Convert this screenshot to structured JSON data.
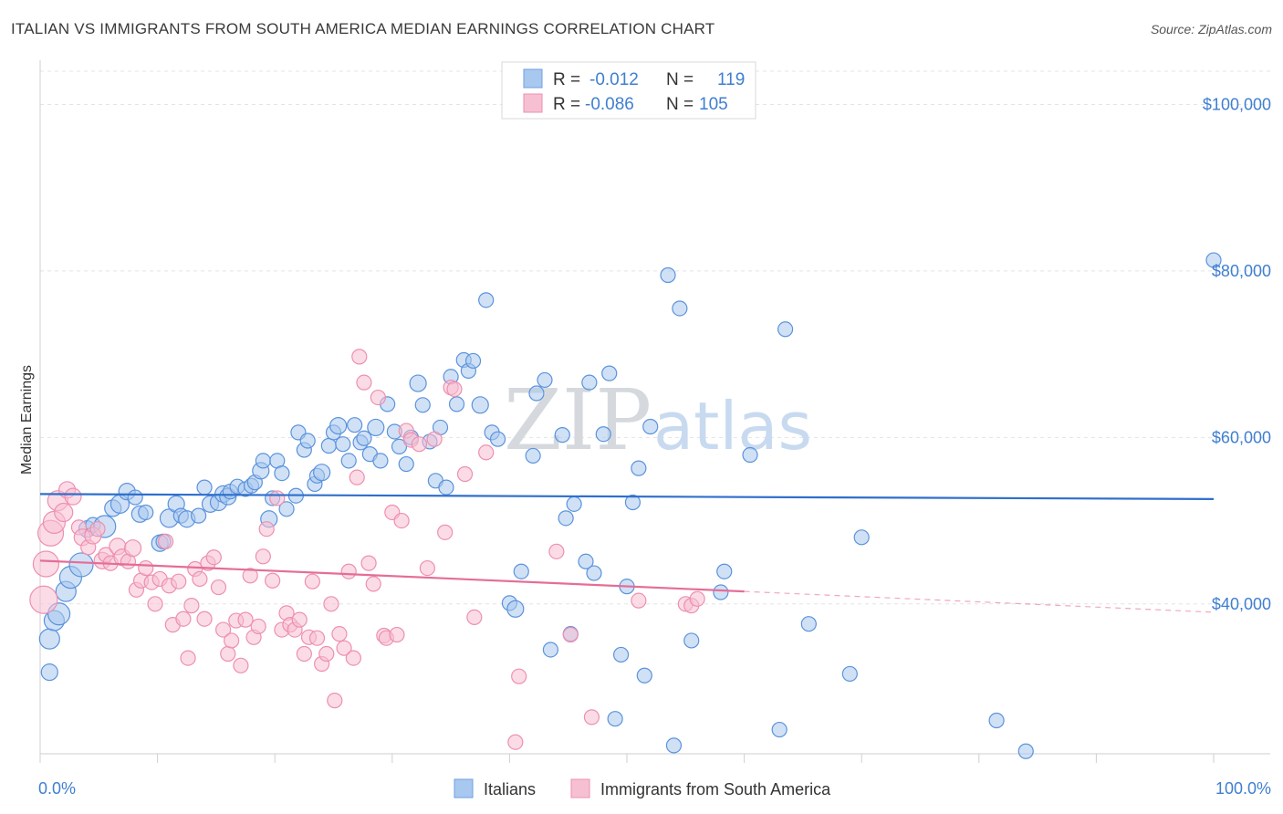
{
  "title": "ITALIAN VS IMMIGRANTS FROM SOUTH AMERICA MEDIAN EARNINGS CORRELATION CHART",
  "source": "Source: ZipAtlas.com",
  "watermark": {
    "part1": "ZIP",
    "part2": "atlas"
  },
  "legend": {
    "rows": [
      {
        "r_label": "R =",
        "r_value": "-0.012",
        "n_label": "N =",
        "n_value": "119",
        "color": "#a9c8ef",
        "stroke": "#6d9fe0"
      },
      {
        "r_label": "R =",
        "r_value": "-0.086",
        "n_label": "N =",
        "n_value": "105",
        "color": "#f7c0d2",
        "stroke": "#ee8fb0"
      }
    ]
  },
  "chart_data": {
    "type": "scatter",
    "ylabel": "Median Earnings",
    "xlim": [
      0,
      100
    ],
    "ylim": [
      22000,
      104000
    ],
    "y_ticks": [
      {
        "value": 40000,
        "label": "$40,000"
      },
      {
        "value": 60000,
        "label": "$60,000"
      },
      {
        "value": 80000,
        "label": "$80,000"
      },
      {
        "value": 100000,
        "label": "$100,000"
      }
    ],
    "x_tick_labels": [
      {
        "value": 0,
        "label": "0.0%"
      },
      {
        "value": 100,
        "label": "100.0%"
      }
    ],
    "series": [
      {
        "name": "Italians",
        "fill": "#a9c8ef",
        "stroke": "#5b93dc",
        "trend": {
          "x0": 0,
          "y0": 53200,
          "x1": 100,
          "y1": 52600,
          "color": "#2f6fcc"
        },
        "points": [
          [
            0.8,
            35800,
            11
          ],
          [
            0.8,
            31800,
            9
          ],
          [
            1.2,
            38000,
            11
          ],
          [
            1.6,
            38800,
            12
          ],
          [
            2.2,
            41500,
            11
          ],
          [
            2.6,
            43200,
            12
          ],
          [
            3.5,
            44700,
            13
          ],
          [
            4.0,
            49000,
            9
          ],
          [
            4.5,
            49500,
            8
          ],
          [
            5.5,
            49300,
            12
          ],
          [
            6.2,
            51500,
            9
          ],
          [
            6.8,
            52000,
            10
          ],
          [
            7.4,
            53500,
            9
          ],
          [
            8.1,
            52800,
            8
          ],
          [
            8.5,
            50800,
            9
          ],
          [
            9.0,
            51000,
            8
          ],
          [
            10.2,
            47300,
            9
          ],
          [
            10.5,
            47500,
            8
          ],
          [
            11.0,
            50300,
            10
          ],
          [
            11.6,
            52000,
            9
          ],
          [
            12.0,
            50600,
            8
          ],
          [
            12.5,
            50200,
            9
          ],
          [
            13.5,
            50600,
            8
          ],
          [
            14.0,
            54000,
            8
          ],
          [
            14.5,
            52000,
            9
          ],
          [
            15.2,
            52200,
            9
          ],
          [
            15.6,
            53200,
            9
          ],
          [
            16.0,
            52900,
            9
          ],
          [
            16.2,
            53500,
            8
          ],
          [
            16.8,
            54100,
            8
          ],
          [
            17.5,
            53800,
            8
          ],
          [
            18.0,
            54200,
            8
          ],
          [
            18.3,
            54600,
            8
          ],
          [
            18.8,
            56000,
            9
          ],
          [
            19.0,
            57200,
            8
          ],
          [
            19.5,
            50200,
            9
          ],
          [
            19.8,
            52700,
            8
          ],
          [
            20.2,
            57200,
            8
          ],
          [
            20.6,
            55700,
            8
          ],
          [
            21.0,
            51400,
            8
          ],
          [
            21.8,
            53000,
            8
          ],
          [
            22.0,
            60600,
            8
          ],
          [
            22.5,
            58500,
            8
          ],
          [
            22.8,
            59600,
            8
          ],
          [
            23.4,
            54400,
            8
          ],
          [
            23.6,
            55400,
            8
          ],
          [
            24.0,
            55800,
            9
          ],
          [
            24.6,
            59000,
            8
          ],
          [
            25.0,
            60600,
            8
          ],
          [
            25.4,
            61400,
            9
          ],
          [
            25.8,
            59200,
            8
          ],
          [
            26.3,
            57200,
            8
          ],
          [
            26.8,
            61500,
            8
          ],
          [
            27.3,
            59400,
            8
          ],
          [
            27.6,
            59900,
            8
          ],
          [
            28.1,
            58000,
            8
          ],
          [
            28.6,
            61200,
            9
          ],
          [
            29.0,
            57200,
            8
          ],
          [
            29.6,
            64000,
            8
          ],
          [
            30.2,
            60700,
            8
          ],
          [
            30.6,
            58900,
            8
          ],
          [
            31.2,
            56800,
            8
          ],
          [
            31.6,
            60000,
            8
          ],
          [
            32.2,
            66500,
            9
          ],
          [
            32.6,
            63900,
            8
          ],
          [
            33.2,
            59500,
            8
          ],
          [
            33.7,
            54800,
            8
          ],
          [
            34.1,
            61200,
            8
          ],
          [
            34.6,
            54000,
            8
          ],
          [
            35.0,
            67300,
            8
          ],
          [
            35.5,
            64000,
            8
          ],
          [
            36.1,
            69300,
            8
          ],
          [
            36.5,
            68000,
            8
          ],
          [
            36.9,
            69200,
            8
          ],
          [
            37.5,
            63900,
            9
          ],
          [
            38.0,
            76500,
            8
          ],
          [
            38.5,
            60600,
            8
          ],
          [
            39.0,
            59800,
            8
          ],
          [
            40.0,
            40100,
            8
          ],
          [
            40.5,
            39400,
            9
          ],
          [
            41.0,
            43900,
            8
          ],
          [
            42.0,
            57800,
            8
          ],
          [
            42.3,
            65300,
            8
          ],
          [
            43.0,
            66900,
            8
          ],
          [
            43.5,
            34500,
            8
          ],
          [
            44.5,
            60300,
            8
          ],
          [
            44.8,
            50300,
            8
          ],
          [
            45.2,
            36400,
            8
          ],
          [
            45.5,
            52000,
            8
          ],
          [
            46.5,
            45100,
            8
          ],
          [
            46.8,
            66600,
            8
          ],
          [
            47.2,
            43700,
            8
          ],
          [
            48.0,
            60400,
            8
          ],
          [
            48.5,
            67700,
            8
          ],
          [
            49.0,
            26200,
            8
          ],
          [
            49.5,
            33900,
            8
          ],
          [
            50.0,
            42100,
            8
          ],
          [
            50.5,
            52200,
            8
          ],
          [
            51.0,
            56300,
            8
          ],
          [
            51.5,
            31400,
            8
          ],
          [
            52.0,
            61300,
            8
          ],
          [
            53.5,
            79500,
            8
          ],
          [
            54.0,
            23000,
            8
          ],
          [
            54.5,
            75500,
            8
          ],
          [
            55.5,
            35600,
            8
          ],
          [
            58.0,
            41400,
            8
          ],
          [
            58.3,
            43900,
            8
          ],
          [
            60.5,
            57900,
            8
          ],
          [
            63.0,
            24900,
            8
          ],
          [
            63.5,
            73000,
            8
          ],
          [
            65.5,
            37600,
            8
          ],
          [
            70.0,
            48000,
            8
          ],
          [
            69.0,
            31600,
            8
          ],
          [
            81.5,
            26000,
            8
          ],
          [
            84.0,
            22300,
            8
          ],
          [
            100.0,
            81300,
            8
          ]
        ]
      },
      {
        "name": "Immigrants from South America",
        "fill": "#f7c0d2",
        "stroke": "#ee8fb0",
        "trend": {
          "x0": 0,
          "y0": 45200,
          "x1": 60,
          "y1": 41500,
          "color": "#e56d98"
        },
        "trend_dashed": {
          "x0": 60,
          "y0": 41500,
          "x1": 100,
          "y1": 39000
        },
        "points": [
          [
            0.3,
            40500,
            15
          ],
          [
            0.5,
            44800,
            14
          ],
          [
            0.9,
            48500,
            14
          ],
          [
            1.2,
            49800,
            12
          ],
          [
            1.5,
            52400,
            11
          ],
          [
            2.0,
            51000,
            10
          ],
          [
            2.3,
            53700,
            9
          ],
          [
            2.8,
            52900,
            9
          ],
          [
            3.3,
            49200,
            8
          ],
          [
            3.6,
            48000,
            9
          ],
          [
            4.1,
            46800,
            8
          ],
          [
            4.5,
            48200,
            9
          ],
          [
            4.9,
            49000,
            8
          ],
          [
            5.3,
            45200,
            9
          ],
          [
            5.6,
            45900,
            8
          ],
          [
            6.0,
            44900,
            8
          ],
          [
            6.6,
            46900,
            9
          ],
          [
            7.0,
            45600,
            9
          ],
          [
            7.5,
            45100,
            8
          ],
          [
            7.9,
            46700,
            9
          ],
          [
            8.2,
            41700,
            8
          ],
          [
            8.6,
            42800,
            8
          ],
          [
            9.0,
            44300,
            8
          ],
          [
            9.5,
            42600,
            8
          ],
          [
            9.8,
            40000,
            8
          ],
          [
            10.2,
            43000,
            8
          ],
          [
            10.7,
            47500,
            8
          ],
          [
            11.0,
            42200,
            8
          ],
          [
            11.3,
            37500,
            8
          ],
          [
            11.8,
            42700,
            8
          ],
          [
            12.2,
            38200,
            8
          ],
          [
            12.6,
            33500,
            8
          ],
          [
            12.9,
            39800,
            8
          ],
          [
            13.2,
            44200,
            8
          ],
          [
            13.6,
            43000,
            8
          ],
          [
            14.0,
            38200,
            8
          ],
          [
            14.3,
            44900,
            8
          ],
          [
            14.8,
            45600,
            8
          ],
          [
            15.2,
            42000,
            8
          ],
          [
            15.6,
            36900,
            8
          ],
          [
            16.0,
            34000,
            8
          ],
          [
            16.3,
            35600,
            8
          ],
          [
            16.7,
            38000,
            8
          ],
          [
            17.1,
            32600,
            8
          ],
          [
            17.5,
            38100,
            8
          ],
          [
            17.9,
            43400,
            8
          ],
          [
            18.2,
            36000,
            8
          ],
          [
            18.6,
            37300,
            8
          ],
          [
            19.0,
            45700,
            8
          ],
          [
            19.3,
            49000,
            8
          ],
          [
            19.8,
            42800,
            8
          ],
          [
            20.2,
            52700,
            8
          ],
          [
            20.6,
            36900,
            8
          ],
          [
            21.0,
            38900,
            8
          ],
          [
            21.3,
            37500,
            8
          ],
          [
            21.7,
            36900,
            8
          ],
          [
            22.1,
            38100,
            8
          ],
          [
            22.5,
            34000,
            8
          ],
          [
            22.9,
            36000,
            8
          ],
          [
            23.2,
            42700,
            8
          ],
          [
            23.6,
            35900,
            8
          ],
          [
            24.0,
            32800,
            8
          ],
          [
            24.4,
            34000,
            8
          ],
          [
            24.8,
            40000,
            8
          ],
          [
            25.1,
            28400,
            8
          ],
          [
            25.5,
            36400,
            8
          ],
          [
            25.9,
            34700,
            8
          ],
          [
            26.3,
            43900,
            8
          ],
          [
            26.7,
            33500,
            8
          ],
          [
            27.0,
            55200,
            8
          ],
          [
            27.2,
            69700,
            8
          ],
          [
            27.6,
            66600,
            8
          ],
          [
            28.0,
            44900,
            8
          ],
          [
            28.4,
            42400,
            8
          ],
          [
            28.8,
            64800,
            8
          ],
          [
            29.3,
            36200,
            8
          ],
          [
            29.5,
            35900,
            8
          ],
          [
            30.0,
            51000,
            8
          ],
          [
            30.4,
            36300,
            8
          ],
          [
            30.8,
            50000,
            8
          ],
          [
            31.2,
            60800,
            8
          ],
          [
            31.6,
            59700,
            8
          ],
          [
            32.3,
            59200,
            8
          ],
          [
            33.0,
            44300,
            8
          ],
          [
            33.6,
            59800,
            8
          ],
          [
            34.5,
            48600,
            8
          ],
          [
            35.0,
            66000,
            8
          ],
          [
            35.3,
            65800,
            8
          ],
          [
            36.2,
            55600,
            8
          ],
          [
            37.0,
            38400,
            8
          ],
          [
            38.0,
            58200,
            8
          ],
          [
            40.5,
            23400,
            8
          ],
          [
            40.8,
            31300,
            8
          ],
          [
            44.0,
            46300,
            8
          ],
          [
            45.2,
            36300,
            8
          ],
          [
            47.0,
            26400,
            8
          ],
          [
            51.0,
            40400,
            8
          ],
          [
            55.0,
            40000,
            8
          ],
          [
            55.5,
            39800,
            8
          ],
          [
            56.0,
            40600,
            8
          ]
        ]
      }
    ]
  },
  "bottom_legend": [
    {
      "label": "Italians",
      "fill": "#a9c8ef",
      "stroke": "#6d9fe0"
    },
    {
      "label": "Immigrants from South America",
      "fill": "#f7c0d2",
      "stroke": "#ee8fb0"
    }
  ]
}
